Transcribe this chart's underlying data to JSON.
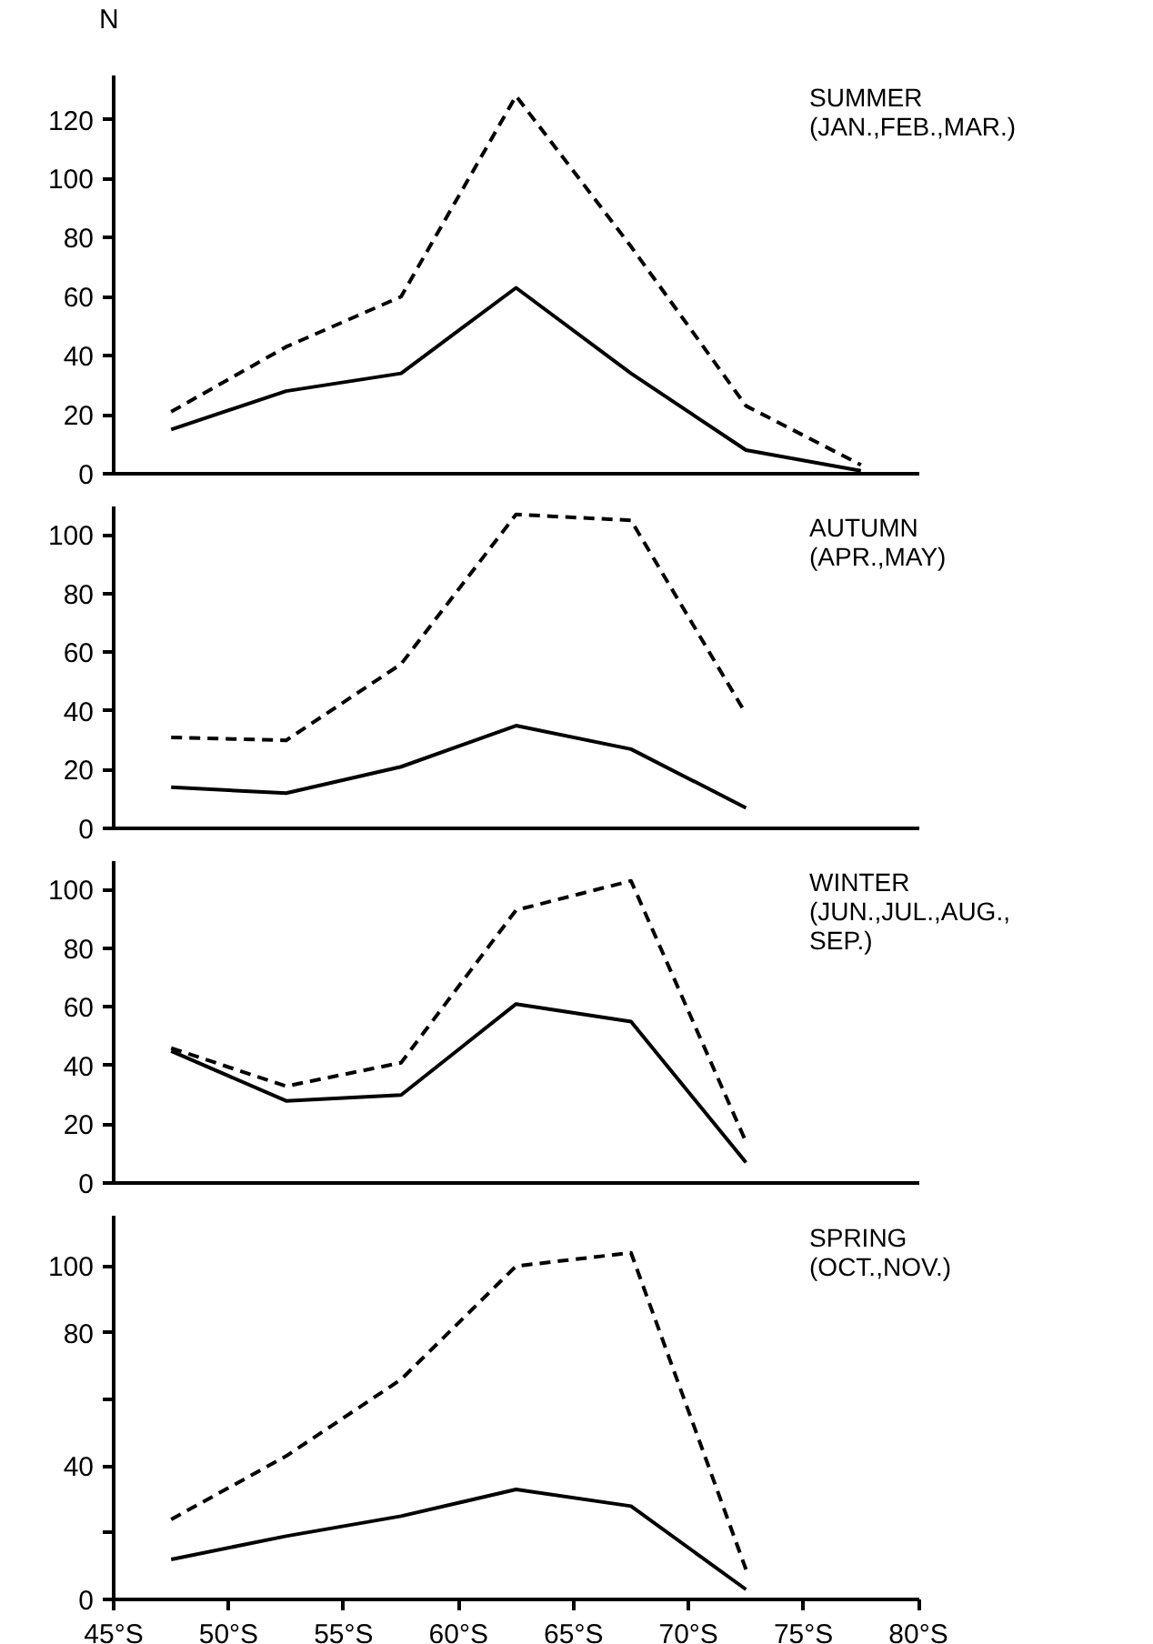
{
  "chart_data": [
    {
      "type": "line",
      "ylabel": "N",
      "annotations": [
        "SUMMER\n  (JAN.,FEB.,MAR.)"
      ],
      "x": [
        47.5,
        52.5,
        57.5,
        62.5,
        67.5,
        72.5,
        77.5
      ],
      "series": [
        {
          "color": "#000000",
          "line_style": "solid",
          "values": [
            15,
            28,
            34,
            63,
            34,
            8,
            1
          ]
        },
        {
          "color": "#000000",
          "line_style": "dashed",
          "values": [
            21,
            43,
            60,
            128,
            77,
            23,
            3
          ]
        }
      ],
      "xlim": [
        45,
        80
      ],
      "ylim": [
        0,
        135
      ],
      "yticks": [
        0,
        20,
        40,
        60,
        80,
        100,
        120
      ],
      "tick_labels": "y",
      "grid": false,
      "marker": "none"
    },
    {
      "type": "line",
      "annotations": [
        "AUTUMN\n  (APR.,MAY)"
      ],
      "x": [
        47.5,
        52.5,
        57.5,
        62.5,
        67.5,
        72.5
      ],
      "series": [
        {
          "color": "#000000",
          "line_style": "solid",
          "values": [
            14,
            12,
            21,
            35,
            27,
            7
          ]
        },
        {
          "color": "#000000",
          "line_style": "dashed",
          "values": [
            31,
            30,
            56,
            107,
            105,
            39
          ]
        }
      ],
      "xlim": [
        45,
        80
      ],
      "ylim": [
        0,
        110
      ],
      "yticks": [
        0,
        20,
        40,
        60,
        80,
        100
      ],
      "tick_labels": "y",
      "grid": false,
      "marker": "none"
    },
    {
      "type": "line",
      "annotations": [
        "WINTER\n  (JUN.,JUL.,AUG.,\n  SEP.)"
      ],
      "x": [
        47.5,
        52.5,
        57.5,
        62.5,
        67.5,
        72.5
      ],
      "series": [
        {
          "color": "#000000",
          "line_style": "solid",
          "values": [
            45,
            28,
            30,
            61,
            55,
            7
          ]
        },
        {
          "color": "#000000",
          "line_style": "dashed",
          "values": [
            46,
            33,
            41,
            93,
            103,
            14
          ]
        }
      ],
      "xlim": [
        45,
        80
      ],
      "ylim": [
        0,
        110
      ],
      "yticks": [
        0,
        20,
        40,
        60,
        80,
        100
      ],
      "tick_labels": "y",
      "grid": false,
      "marker": "none"
    },
    {
      "type": "line",
      "annotations": [
        "SPRING\n  (OCT.,NOV.)"
      ],
      "x": [
        47.5,
        52.5,
        57.5,
        62.5,
        67.5,
        72.5
      ],
      "series": [
        {
          "color": "#000000",
          "line_style": "solid",
          "values": [
            12,
            19,
            25,
            33,
            28,
            3
          ]
        },
        {
          "color": "#000000",
          "line_style": "dashed",
          "values": [
            24,
            43,
            66,
            100,
            104,
            9
          ]
        }
      ],
      "xlim": [
        45,
        80
      ],
      "ylim": [
        0,
        115
      ],
      "yticks": [
        0,
        {
          "value": 20,
          "label": null
        },
        40,
        {
          "value": 60,
          "label": null
        },
        80,
        100
      ],
      "xticks": [
        {
          "value": 45,
          "label": "45°S"
        },
        {
          "value": 50,
          "label": "50°S"
        },
        {
          "value": 55,
          "label": "55°S"
        },
        {
          "value": 60,
          "label": "60°S"
        },
        {
          "value": 65,
          "label": "65°S"
        },
        {
          "value": 70,
          "label": "70°S"
        },
        {
          "value": 75,
          "label": "75°S"
        },
        {
          "value": 80,
          "label": "80°S"
        }
      ],
      "grid": false,
      "marker": "none"
    }
  ]
}
